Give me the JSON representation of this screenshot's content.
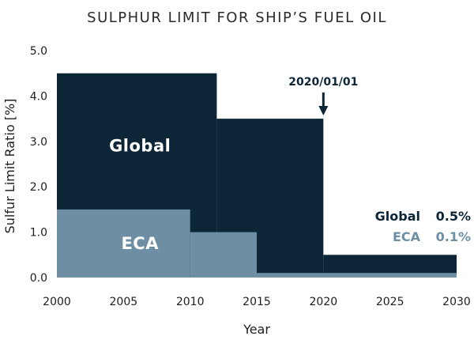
{
  "chart_data": {
    "type": "area",
    "title": "SULPHUR LIMIT FOR SHIP’S FUEL OIL",
    "xlabel": "Year",
    "ylabel": "Sulfur Limit Ratio [%]",
    "xlim": [
      2000,
      2030
    ],
    "ylim": [
      0,
      5
    ],
    "x_ticks": [
      "2000",
      "2005",
      "2010",
      "2015",
      "2020",
      "2025",
      "2030"
    ],
    "y_ticks": [
      "0.0",
      "1.0",
      "2.0",
      "3.0",
      "4.0",
      "5.0"
    ],
    "grid": false,
    "series": [
      {
        "name": "Global",
        "color": "#0c2638",
        "steps": [
          {
            "from": 2000,
            "to": 2012,
            "value": 4.5
          },
          {
            "from": 2012,
            "to": 2020,
            "value": 3.5
          },
          {
            "from": 2020,
            "to": 2030,
            "value": 0.5
          }
        ]
      },
      {
        "name": "ECA",
        "color": "#6e8fa3",
        "steps": [
          {
            "from": 2000,
            "to": 2010,
            "value": 1.5
          },
          {
            "from": 2010,
            "to": 2015,
            "value": 1.0
          },
          {
            "from": 2015,
            "to": 2030,
            "value": 0.1
          }
        ]
      }
    ],
    "region_labels": [
      {
        "text": "Global",
        "x": 2006,
        "y": 2.9,
        "series": "Global"
      },
      {
        "text": "ECA",
        "x": 2006,
        "y": 0.75,
        "series": "ECA"
      }
    ],
    "annotation": {
      "text": "2020/01/01",
      "x": 2020,
      "y": 3.5
    },
    "legend": {
      "placement": "right",
      "entries": [
        {
          "name": "Global",
          "value": "0.5%",
          "color": "#0c2638"
        },
        {
          "name": "ECA",
          "value": "0.1%",
          "color": "#6e8fa3"
        }
      ]
    }
  }
}
